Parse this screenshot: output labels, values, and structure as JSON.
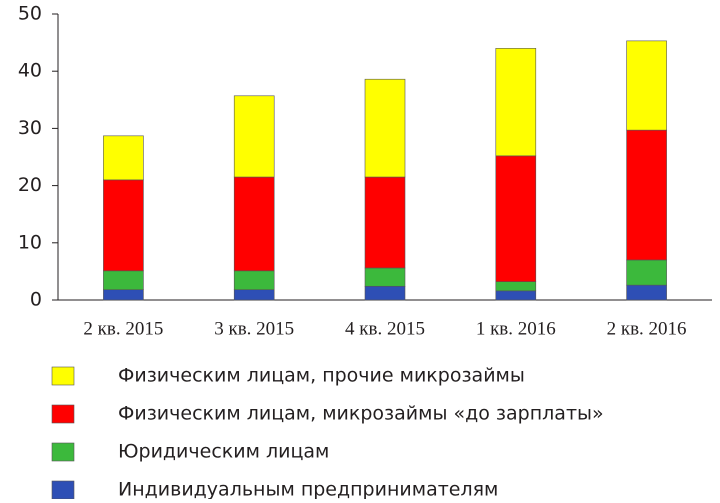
{
  "chart_data": {
    "type": "stacked-bar",
    "categories": [
      "2 кв. 2015",
      "3 кв. 2015",
      "4 кв. 2015",
      "1 кв. 2016",
      "2 кв. 2016"
    ],
    "series": [
      {
        "name": "Физическим лицам, прочие микрозаймы",
        "color": "#ffff00",
        "values": [
          7.7,
          14.2,
          17.1,
          18.8,
          15.6
        ]
      },
      {
        "name": "Физическим лицам, микрозаймы «до зарплаты»",
        "color": "#ff0000",
        "values": [
          15.9,
          16.4,
          15.9,
          22.0,
          22.7
        ]
      },
      {
        "name": "Юридическим лицам",
        "color": "#3cb93c",
        "values": [
          3.3,
          3.3,
          3.2,
          1.6,
          4.4
        ]
      },
      {
        "name": "Индивидуальным предпринимателям",
        "color": "#2e4fb5",
        "values": [
          1.8,
          1.8,
          2.4,
          1.6,
          2.6
        ]
      }
    ],
    "ylim": [
      0,
      50
    ],
    "yticks": [
      0,
      10,
      20,
      30,
      40,
      50
    ],
    "grid": false,
    "legend": "bottom"
  }
}
